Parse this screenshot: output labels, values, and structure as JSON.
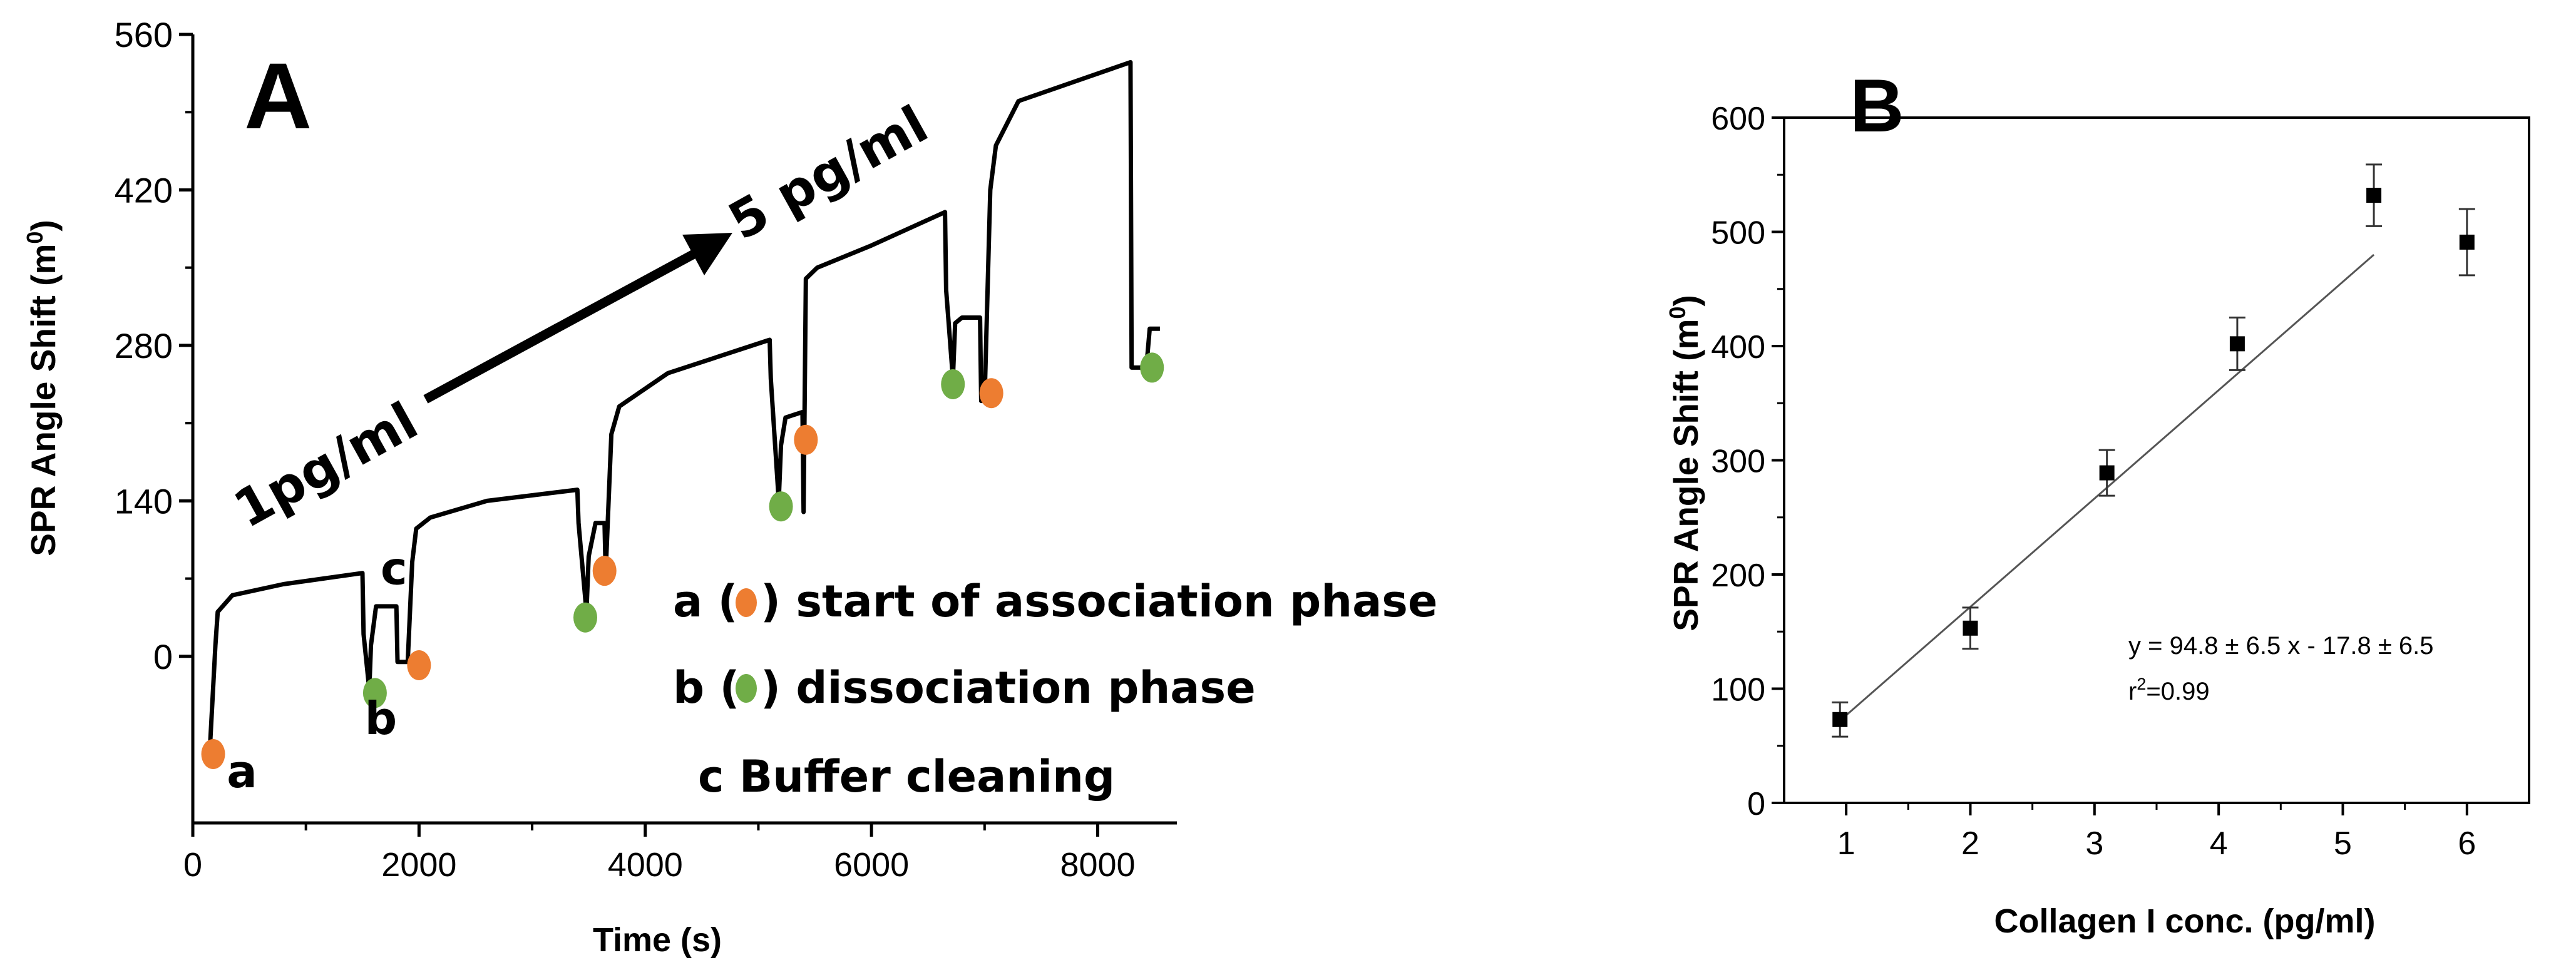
{
  "chart_data": [
    {
      "type": "line",
      "panel_label": "A",
      "xlabel": "Time (s)",
      "ylabel": "SPR Angle Shift (m",
      "ylabel_sup": "0",
      "ylabel_close": ")",
      "xlim": [
        0,
        8700
      ],
      "ylim": [
        -150,
        560
      ],
      "xticks": [
        0,
        2000,
        4000,
        6000,
        8000
      ],
      "yticks": [
        0,
        140,
        280,
        420,
        560
      ],
      "grid": false,
      "series": [
        {
          "x": [
            150,
            200,
            220,
            350,
            800,
            1500,
            1510,
            1560,
            1575,
            1620,
            1800,
            1810,
            1900,
            1940,
            1975,
            2100,
            2600,
            3400,
            3410,
            3480,
            3500,
            3560,
            3640,
            3650,
            3700,
            3770,
            4200,
            5100,
            5110,
            5180,
            5200,
            5240,
            5390,
            5400,
            5420,
            5520,
            6000,
            6650,
            6660,
            6720,
            6740,
            6800,
            6960,
            6970,
            7000,
            7050,
            7100,
            7300,
            8290,
            8300,
            8430,
            8460,
            8550
          ],
          "y": [
            -85,
            10,
            40,
            55,
            65,
            75,
            20,
            -30,
            10,
            45,
            45,
            -5,
            -5,
            85,
            115,
            125,
            140,
            150,
            120,
            40,
            90,
            120,
            120,
            75,
            200,
            225,
            255,
            285,
            250,
            140,
            190,
            215,
            220,
            130,
            340,
            350,
            370,
            400,
            330,
            250,
            300,
            305,
            305,
            230,
            230,
            420,
            460,
            500,
            535,
            260,
            260,
            295,
            295
          ]
        }
      ],
      "markers": [
        {
          "type": "association",
          "x": 180,
          "y": -88
        },
        {
          "type": "dissociation",
          "x": 1610,
          "y": -33
        },
        {
          "type": "association",
          "x": 2000,
          "y": -8
        },
        {
          "type": "dissociation",
          "x": 3470,
          "y": 35
        },
        {
          "type": "association",
          "x": 3640,
          "y": 77
        },
        {
          "type": "dissociation",
          "x": 5200,
          "y": 135
        },
        {
          "type": "association",
          "x": 5420,
          "y": 195
        },
        {
          "type": "dissociation",
          "x": 6720,
          "y": 245
        },
        {
          "type": "association",
          "x": 7060,
          "y": 237
        },
        {
          "type": "dissociation",
          "x": 8480,
          "y": 260
        }
      ],
      "marker_colors": {
        "association": "#ED7D31",
        "dissociation": "#70AD47"
      },
      "point_labels": [
        {
          "text": "a",
          "x": 300,
          "y": -118
        },
        {
          "text": "b",
          "x": 1520,
          "y": -70
        },
        {
          "text": "c",
          "x": 1660,
          "y": 65
        }
      ],
      "annotations": {
        "start_label": "1pg/ml",
        "end_label": "5 pg/ml",
        "legend_a_prefix": "a (",
        "legend_a_suffix": ") start of association phase",
        "legend_b_prefix": "b (",
        "legend_b_suffix": ") dissociation phase",
        "legend_c": "c Buffer cleaning"
      }
    },
    {
      "type": "scatter",
      "panel_label": "B",
      "xlabel": "Collagen I conc. (pg/ml)",
      "ylabel": "SPR Angle Shift (m",
      "ylabel_sup": "0",
      "ylabel_close": ")",
      "xlim": [
        0.5,
        6.5
      ],
      "ylim": [
        0,
        600
      ],
      "xticks": [
        1,
        2,
        3,
        4,
        5,
        6
      ],
      "yticks": [
        0,
        100,
        200,
        300,
        400,
        500,
        600
      ],
      "grid": false,
      "x": [
        0.95,
        2.0,
        3.1,
        4.15,
        5.25,
        6.0
      ],
      "y": [
        73,
        153,
        289,
        402,
        532,
        491
      ],
      "yerr": [
        15,
        18,
        20,
        23,
        27,
        29
      ],
      "fit": {
        "x": [
          0.95,
          5.25
        ],
        "y": [
          72,
          480
        ]
      },
      "equation": "y = 94.8 ± 6.5 x - 17.8 ± 6.5",
      "r2_prefix": "r",
      "r2_sup": "2",
      "r2_value": "=0.99"
    }
  ]
}
